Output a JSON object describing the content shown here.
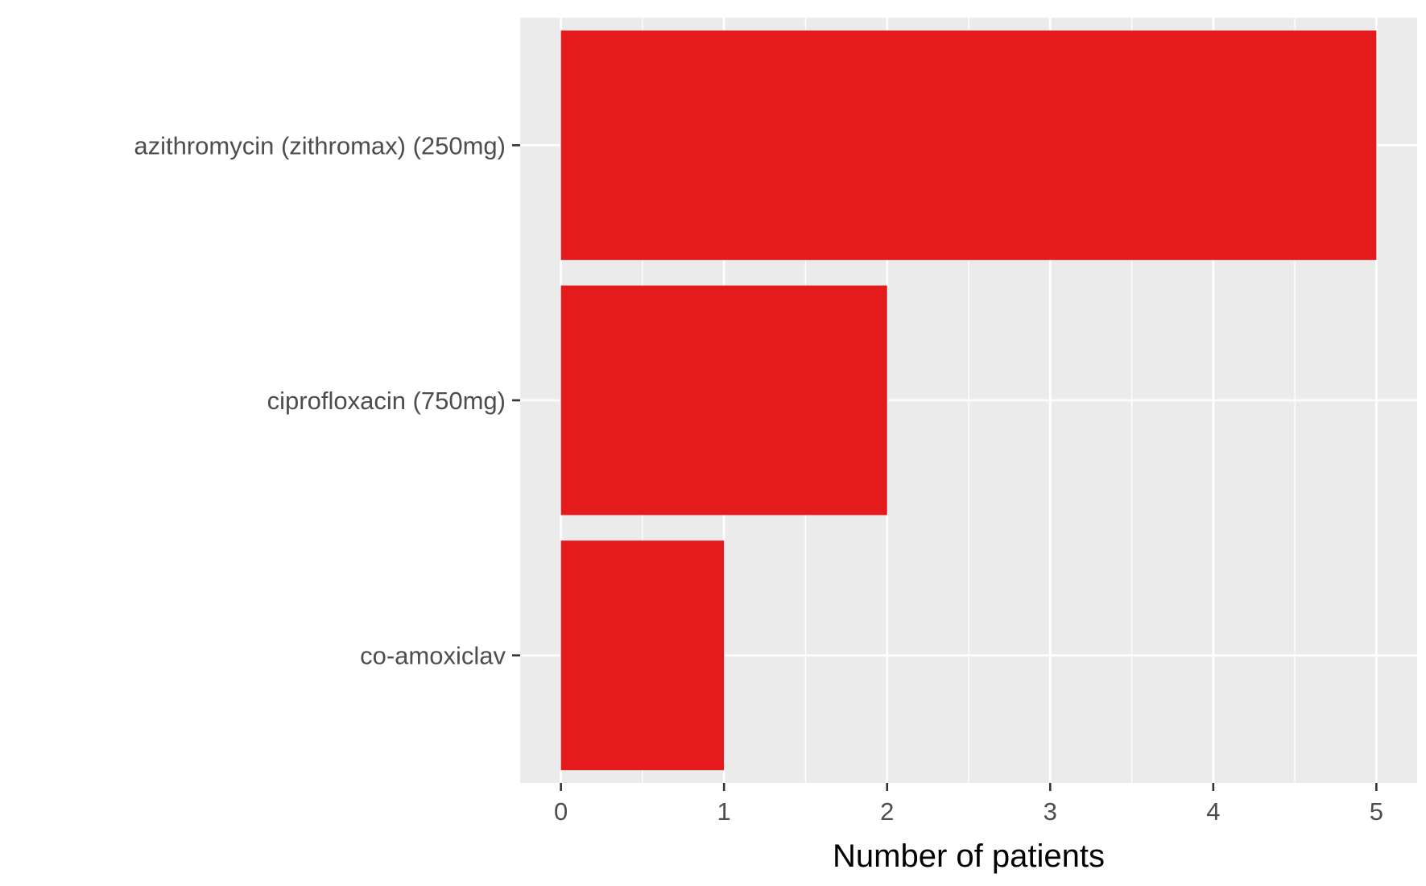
{
  "chart_data": {
    "type": "bar",
    "orientation": "horizontal",
    "categories": [
      "azithromycin (zithromax) (250mg)",
      "ciprofloxacin (750mg)",
      "co-amoxiclav"
    ],
    "values": [
      5,
      2,
      1
    ],
    "xlabel": "Number of patients",
    "ylabel": "",
    "xlim": [
      -0.25,
      5.25
    ],
    "x_ticks": [
      0,
      1,
      2,
      3,
      4,
      5
    ],
    "grid": true,
    "legend": "none",
    "colors": {
      "bar": "#e41a1c",
      "panel": "#ebebeb",
      "grid": "#ffffff",
      "tick_text": "#4d4d4d",
      "tick_mark": "#333333"
    }
  }
}
